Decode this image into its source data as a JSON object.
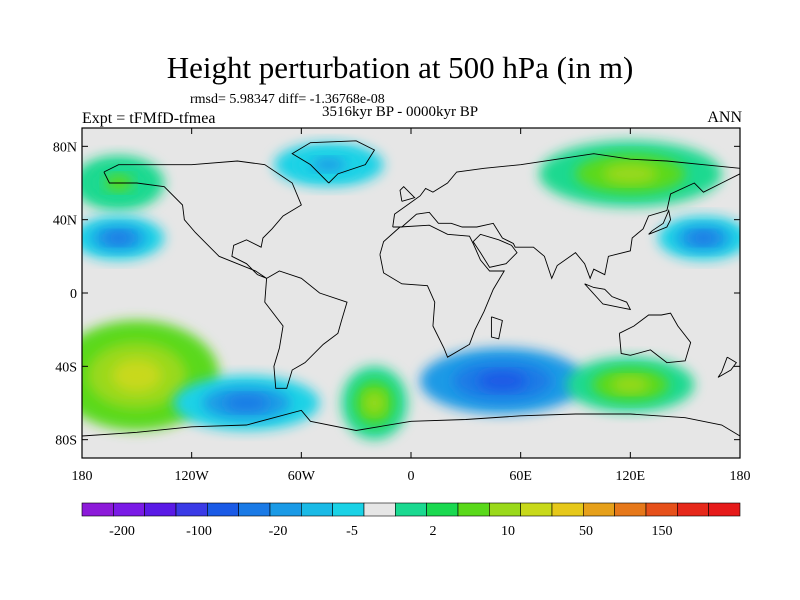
{
  "title": "Height perturbation at 500 hPa (in m)",
  "stats": "rmsd= 5.98347 diff= -1.36768e-08",
  "experiment": "Expt = tFMfD-tfmea",
  "period": "3516kyr BP - 0000kyr BP",
  "season": "ANN",
  "map": {
    "projection": "cylindrical equidistant",
    "lon_range": [
      -180,
      180
    ],
    "lat_range": [
      -90,
      90
    ],
    "lat_ticks": [
      "80N",
      "40N",
      "0",
      "40S",
      "80S"
    ],
    "lon_ticks": [
      "180",
      "120W",
      "60W",
      "0",
      "60E",
      "120E",
      "180"
    ],
    "zero_band_color": "#e6e6e6",
    "fields": [
      {
        "name": "north-pacific-high",
        "lon": -160,
        "lat": 60,
        "rx": 25,
        "ry": 15,
        "value": 10
      },
      {
        "name": "north-atlantic-low",
        "lon": -45,
        "lat": 70,
        "rx": 30,
        "ry": 12,
        "value": -5
      },
      {
        "name": "siberia-high",
        "lon": 120,
        "lat": 65,
        "rx": 50,
        "ry": 18,
        "value": 20
      },
      {
        "name": "west-pacific-low",
        "lon": 160,
        "lat": 30,
        "rx": 25,
        "ry": 12,
        "value": -10
      },
      {
        "name": "east-pacific-low",
        "lon": -160,
        "lat": 30,
        "rx": 25,
        "ry": 12,
        "value": -10
      },
      {
        "name": "south-pacific-high",
        "lon": -150,
        "lat": -45,
        "rx": 45,
        "ry": 30,
        "value": 40
      },
      {
        "name": "south-atlantic-low",
        "lon": -90,
        "lat": -60,
        "rx": 40,
        "ry": 15,
        "value": -10
      },
      {
        "name": "south-indian-low",
        "lon": 50,
        "lat": -48,
        "rx": 45,
        "ry": 18,
        "value": -20
      },
      {
        "name": "south-atlantic-high",
        "lon": -20,
        "lat": -60,
        "rx": 18,
        "ry": 20,
        "value": 20
      },
      {
        "name": "south-australia-high",
        "lon": 120,
        "lat": -50,
        "rx": 35,
        "ry": 15,
        "value": 20
      }
    ]
  },
  "colorbar": {
    "colors": [
      "#8c1ad9",
      "#7a1ae6",
      "#5a1ae6",
      "#3a3ae6",
      "#1a5ae6",
      "#1a7ae6",
      "#1a9ae6",
      "#1abae6",
      "#1ad2e6",
      "#e6e6e6",
      "#1ad990",
      "#1ad950",
      "#5ad91a",
      "#9ad91a",
      "#c8d91a",
      "#e6c81a",
      "#e6a01a",
      "#e6781a",
      "#e6501a",
      "#e6281a",
      "#e61a1a"
    ],
    "labels": [
      "-200",
      "-100",
      "-20",
      "-5",
      "2",
      "10",
      "50",
      "150"
    ]
  }
}
